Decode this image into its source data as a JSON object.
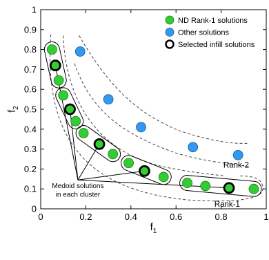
{
  "chart_data": {
    "type": "scatter",
    "xlabel": "f",
    "xlabel_sub": "1",
    "ylabel": "f",
    "ylabel_sub": "2",
    "xlim": [
      0,
      1
    ],
    "ylim": [
      0,
      1
    ],
    "x_ticks": [
      0,
      0.2,
      0.4,
      0.6,
      0.8,
      1
    ],
    "x_tick_labels": [
      "0",
      "0.2",
      "0.4",
      "0.6",
      "0.8",
      "1"
    ],
    "y_ticks": [
      0,
      0.1,
      0.2,
      0.3,
      0.4,
      0.5,
      0.6,
      0.7,
      0.8,
      0.9,
      1
    ],
    "y_tick_labels": [
      "0",
      "0.1",
      "0.2",
      "0.3",
      "0.4",
      "0.5",
      "0.6",
      "0.7",
      "0.8",
      "0.9",
      "1"
    ],
    "grid": false,
    "legend_position": "top-right",
    "series": [
      {
        "name": "ND Rank-1 solutions",
        "color": "#33cc33",
        "points": [
          [
            0.05,
            0.8
          ],
          [
            0.065,
            0.72
          ],
          [
            0.08,
            0.645
          ],
          [
            0.1,
            0.57
          ],
          [
            0.13,
            0.5
          ],
          [
            0.155,
            0.44
          ],
          [
            0.19,
            0.38
          ],
          [
            0.26,
            0.325
          ],
          [
            0.32,
            0.275
          ],
          [
            0.39,
            0.23
          ],
          [
            0.46,
            0.19
          ],
          [
            0.545,
            0.16
          ],
          [
            0.65,
            0.13
          ],
          [
            0.73,
            0.115
          ],
          [
            0.835,
            0.105
          ],
          [
            0.945,
            0.1
          ]
        ]
      },
      {
        "name": "Other solutions",
        "color": "#3399ee",
        "points": [
          [
            0.175,
            0.79
          ],
          [
            0.3,
            0.55
          ],
          [
            0.445,
            0.41
          ],
          [
            0.675,
            0.31
          ],
          [
            0.875,
            0.27
          ]
        ]
      },
      {
        "name": "Selected infill solutions",
        "color": "#000000",
        "points": [
          [
            0.065,
            0.72
          ],
          [
            0.13,
            0.5
          ],
          [
            0.26,
            0.325
          ],
          [
            0.46,
            0.19
          ],
          [
            0.835,
            0.105
          ]
        ]
      }
    ],
    "annotations": {
      "rank2": "Rank-2",
      "rank1": "Rank-1",
      "medoid_line1": "Medoid solutions",
      "medoid_line2": "in each cluster",
      "medoid_origin": [
        0.165,
        0.145
      ],
      "medoid_targets": [
        [
          0.065,
          0.72
        ],
        [
          0.13,
          0.5
        ],
        [
          0.26,
          0.325
        ],
        [
          0.46,
          0.19
        ],
        [
          0.835,
          0.105
        ]
      ]
    }
  }
}
